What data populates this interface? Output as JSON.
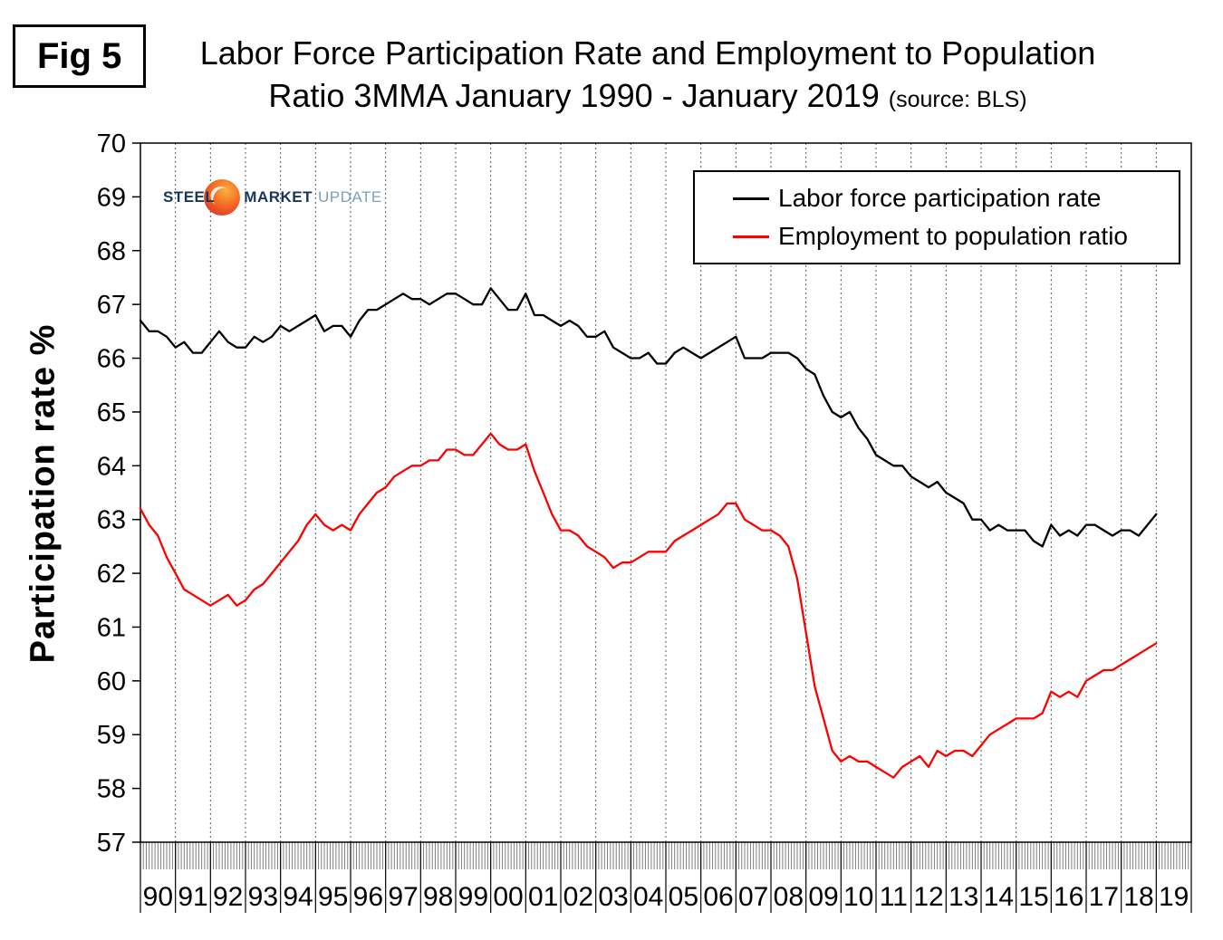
{
  "figure_label": "Fig 5",
  "title": {
    "line1": "Labor Force Participation Rate and Employment to Population",
    "line2": "Ratio 3MMA January 1990 - January 2019",
    "source": "(source: BLS)"
  },
  "logo": {
    "word1": "STEEL",
    "word2": "MARKET",
    "word3": "UPDATE"
  },
  "y_axis_title": "Participation rate %",
  "chart_data": {
    "type": "line",
    "title": "Labor Force Participation Rate and Employment to Population Ratio 3MMA January 1990 - January 2019",
    "xlabel": "",
    "ylabel": "Participation rate %",
    "ylim": [
      57,
      70
    ],
    "y_ticks": [
      57,
      58,
      59,
      60,
      61,
      62,
      63,
      64,
      65,
      66,
      67,
      68,
      69,
      70
    ],
    "x_unit": "quarterly points, Jan 1990 - Jan 2019",
    "grid": "vertical dotted gridlines at year boundaries, dense monthly tick comb on x-axis",
    "legend_position": "top-right inside plot",
    "year_labels": [
      "90",
      "91",
      "92",
      "93",
      "94",
      "95",
      "96",
      "97",
      "98",
      "99",
      "00",
      "01",
      "02",
      "03",
      "04",
      "05",
      "06",
      "07",
      "08",
      "09",
      "10",
      "11",
      "12",
      "13",
      "14",
      "15",
      "16",
      "17",
      "18",
      "19"
    ],
    "series": [
      {
        "name": "Labor force participation rate",
        "color": "#000000",
        "values": [
          66.7,
          66.5,
          66.5,
          66.4,
          66.2,
          66.3,
          66.1,
          66.1,
          66.3,
          66.5,
          66.3,
          66.2,
          66.2,
          66.4,
          66.3,
          66.4,
          66.6,
          66.5,
          66.6,
          66.7,
          66.8,
          66.5,
          66.6,
          66.6,
          66.4,
          66.7,
          66.9,
          66.9,
          67.0,
          67.1,
          67.2,
          67.1,
          67.1,
          67.0,
          67.1,
          67.2,
          67.2,
          67.1,
          67.0,
          67.0,
          67.3,
          67.1,
          66.9,
          66.9,
          67.2,
          66.8,
          66.8,
          66.7,
          66.6,
          66.7,
          66.6,
          66.4,
          66.4,
          66.5,
          66.2,
          66.1,
          66.0,
          66.0,
          66.1,
          65.9,
          65.9,
          66.1,
          66.2,
          66.1,
          66.0,
          66.1,
          66.2,
          66.3,
          66.4,
          66.0,
          66.0,
          66.0,
          66.1,
          66.1,
          66.1,
          66.0,
          65.8,
          65.7,
          65.3,
          65.0,
          64.9,
          65.0,
          64.7,
          64.5,
          64.2,
          64.1,
          64.0,
          64.0,
          63.8,
          63.7,
          63.6,
          63.7,
          63.5,
          63.4,
          63.3,
          63.0,
          63.0,
          62.8,
          62.9,
          62.8,
          62.8,
          62.8,
          62.6,
          62.5,
          62.9,
          62.7,
          62.8,
          62.7,
          62.9,
          62.9,
          62.8,
          62.7,
          62.8,
          62.8,
          62.7,
          62.9,
          63.1
        ]
      },
      {
        "name": "Employment to population ratio",
        "color": "#ff0000",
        "values": [
          63.2,
          62.9,
          62.7,
          62.3,
          62.0,
          61.7,
          61.6,
          61.5,
          61.4,
          61.5,
          61.6,
          61.4,
          61.5,
          61.7,
          61.8,
          62.0,
          62.2,
          62.4,
          62.6,
          62.9,
          63.1,
          62.9,
          62.8,
          62.9,
          62.8,
          63.1,
          63.3,
          63.5,
          63.6,
          63.8,
          63.9,
          64.0,
          64.0,
          64.1,
          64.1,
          64.3,
          64.3,
          64.2,
          64.2,
          64.4,
          64.6,
          64.4,
          64.3,
          64.3,
          64.4,
          63.9,
          63.5,
          63.1,
          62.8,
          62.8,
          62.7,
          62.5,
          62.4,
          62.3,
          62.1,
          62.2,
          62.2,
          62.3,
          62.4,
          62.4,
          62.4,
          62.6,
          62.7,
          62.8,
          62.9,
          63.0,
          63.1,
          63.3,
          63.3,
          63.0,
          62.9,
          62.8,
          62.8,
          62.7,
          62.5,
          61.9,
          60.9,
          59.9,
          59.3,
          58.7,
          58.5,
          58.6,
          58.5,
          58.5,
          58.4,
          58.3,
          58.2,
          58.4,
          58.5,
          58.6,
          58.4,
          58.7,
          58.6,
          58.7,
          58.7,
          58.6,
          58.8,
          59.0,
          59.1,
          59.2,
          59.3,
          59.3,
          59.3,
          59.4,
          59.8,
          59.7,
          59.8,
          59.7,
          60.0,
          60.1,
          60.2,
          60.2,
          60.3,
          60.4,
          60.5,
          60.6,
          60.7
        ]
      }
    ]
  }
}
